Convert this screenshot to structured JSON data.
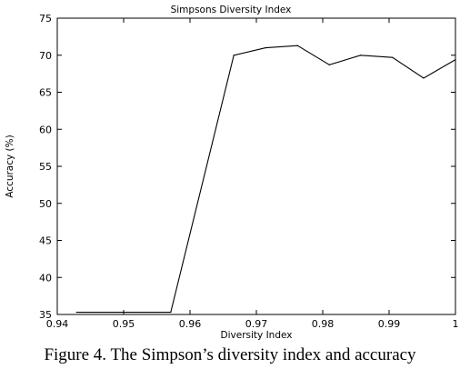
{
  "chart_data": {
    "type": "line",
    "title": "Simpsons Diversity Index",
    "xlabel": "Diversity Index",
    "ylabel": "Accuracy (%)",
    "xlim": [
      0.94,
      1.0
    ],
    "ylim": [
      35,
      75
    ],
    "xticks": [
      0.94,
      0.95,
      0.96,
      0.97,
      0.98,
      0.99,
      1.0
    ],
    "xtick_labels": [
      "0.94",
      "0.95",
      "0.96",
      "0.97",
      "0.98",
      "0.99",
      "1"
    ],
    "yticks": [
      35,
      40,
      45,
      50,
      55,
      60,
      65,
      70,
      75
    ],
    "ytick_labels": [
      "35",
      "40",
      "45",
      "50",
      "55",
      "60",
      "65",
      "70",
      "75"
    ],
    "grid": false,
    "series": [
      {
        "color": "#000000",
        "x": [
          0.9429,
          0.9571,
          0.9666,
          0.9714,
          0.9762,
          0.981,
          0.9857,
          0.9905,
          0.9952,
          1.0
        ],
        "y": [
          35.3,
          35.3,
          70.0,
          71.0,
          71.3,
          68.7,
          70.0,
          69.7,
          66.9,
          69.4
        ]
      }
    ]
  },
  "caption": "Figure 4.  The Simpson’s diversity index and accuracy"
}
